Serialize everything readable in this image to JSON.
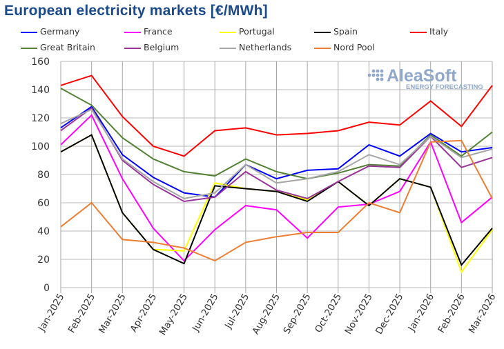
{
  "chart_data": {
    "type": "line",
    "title": "European electricity markets [€/MWh]",
    "xlabel": "",
    "ylabel": "",
    "ylim": [
      0,
      160
    ],
    "yticks": [
      0,
      20,
      40,
      60,
      80,
      100,
      120,
      140,
      160
    ],
    "grid": true,
    "legend_position": "top",
    "watermark": {
      "brand": "AleaSoft",
      "tagline": "ENERGY FORECASTING",
      "color": "#8fa8cc"
    },
    "categories": [
      "Jan-2025",
      "Feb-2025",
      "Mar-2025",
      "Apr-2025",
      "May-2025",
      "Jun-2025",
      "Jul-2025",
      "Aug-2025",
      "Sep-2025",
      "Oct-2025",
      "Nov-2025",
      "Dec-2025",
      "Jan-2026",
      "Feb-2026",
      "Mar-2026"
    ],
    "series": [
      {
        "name": "Germany",
        "color": "#0000ff",
        "values": [
          113,
          128,
          94,
          78,
          67,
          64,
          87,
          77,
          83,
          84,
          101,
          93,
          109,
          96,
          99
        ]
      },
      {
        "name": "France",
        "color": "#ff00ff",
        "values": [
          101,
          122,
          77,
          42,
          19,
          41,
          58,
          55,
          35,
          57,
          59,
          68,
          103,
          46,
          64
        ]
      },
      {
        "name": "Portugal",
        "color": "#ffff00",
        "values": [
          96,
          108,
          53,
          27,
          26,
          74,
          70,
          68,
          62,
          75,
          58,
          77,
          71,
          11,
          41
        ]
      },
      {
        "name": "Spain",
        "color": "#000000",
        "values": [
          96,
          108,
          53,
          27,
          17,
          72,
          70,
          68,
          61,
          75,
          58,
          77,
          71,
          16,
          42
        ]
      },
      {
        "name": "Italy",
        "color": "#ff0000",
        "values": [
          143,
          150,
          121,
          100,
          93,
          111,
          113,
          108,
          109,
          111,
          117,
          115,
          132,
          114,
          143
        ]
      },
      {
        "name": "Great Britain",
        "color": "#548235",
        "values": [
          141,
          129,
          106,
          91,
          82,
          79,
          91,
          82,
          77,
          81,
          87,
          86,
          108,
          93,
          110
        ]
      },
      {
        "name": "Belgium",
        "color": "#993399",
        "values": [
          111,
          127,
          90,
          73,
          61,
          64,
          82,
          69,
          63,
          75,
          86,
          85,
          107,
          85,
          92
        ]
      },
      {
        "name": "Netherlands",
        "color": "#a6a6a6",
        "values": [
          116,
          126,
          91,
          75,
          63,
          67,
          87,
          74,
          77,
          82,
          94,
          87,
          107,
          92,
          98
        ]
      },
      {
        "name": "Nord Pool",
        "color": "#ed7d31",
        "values": [
          43,
          60,
          34,
          32,
          28,
          19,
          32,
          36,
          39,
          39,
          60,
          53,
          103,
          104,
          63
        ]
      }
    ]
  }
}
